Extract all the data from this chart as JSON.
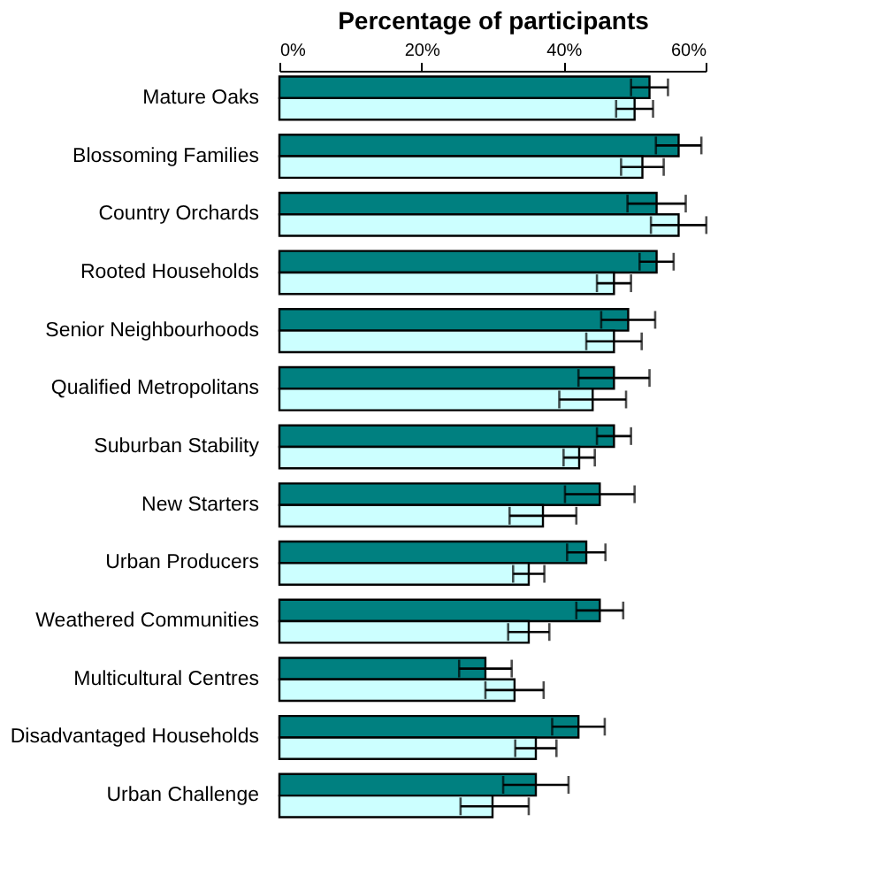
{
  "chart_data": {
    "type": "bar",
    "orientation": "horizontal",
    "xlabel": "Percentage of participants",
    "categories": [
      "Mature Oaks",
      "Blossoming Families",
      "Country Orchards",
      "Rooted Households",
      "Senior Neighbourhoods",
      "Qualified Metropolitans",
      "Suburban Stability",
      "New Starters",
      "Urban Producers",
      "Weathered Communities",
      "Multicultural Centres",
      "Disadvantaged Households",
      "Urban Challenge"
    ],
    "series": [
      {
        "color": "#008080",
        "values": [
          52.1,
          56.2,
          53.1,
          53.1,
          49.1,
          47.1,
          47.1,
          45.1,
          43.2,
          45.1,
          29.0,
          42.1,
          36.1
        ],
        "errors": [
          2.6,
          3.2,
          4.1,
          2.4,
          3.8,
          5.0,
          2.4,
          4.9,
          2.7,
          3.3,
          3.7,
          3.7,
          4.6
        ]
      },
      {
        "color": "#ccffff",
        "values": [
          50.0,
          51.1,
          56.2,
          47.1,
          47.1,
          44.1,
          42.2,
          37.1,
          35.1,
          35.1,
          33.1,
          36.1,
          30.0
        ],
        "errors": [
          2.6,
          3.0,
          3.9,
          2.4,
          3.9,
          4.7,
          2.2,
          4.7,
          2.2,
          2.9,
          4.1,
          2.9,
          [
            25.5,
            35.1
          ]
        ]
      }
    ],
    "xlim": [
      0,
      60
    ],
    "xticks": [
      {
        "value": 0,
        "label": "0%"
      },
      {
        "value": 20,
        "label": "20%"
      },
      {
        "value": 40,
        "label": "40%"
      },
      {
        "value": 60,
        "label": "60%"
      }
    ],
    "grid": false
  }
}
